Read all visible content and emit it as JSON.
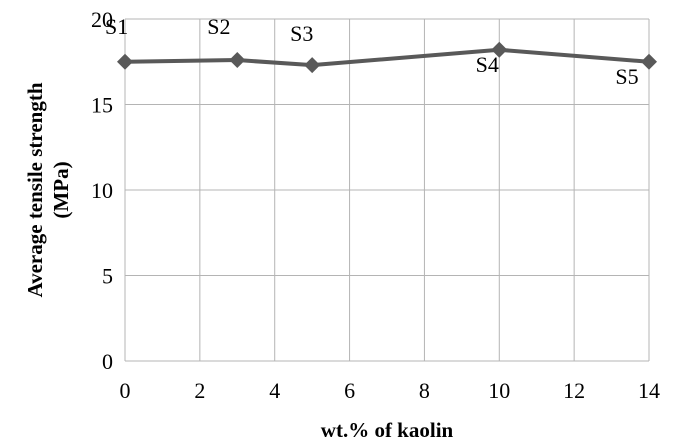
{
  "chart_data": {
    "type": "line",
    "title": "",
    "xlabel": "wt.% of kaolin",
    "ylabel_lines": [
      "Average tensile strength",
      "(MPa)"
    ],
    "xlim": [
      0,
      14
    ],
    "ylim": [
      0,
      20
    ],
    "xticks": [
      0,
      2,
      4,
      6,
      8,
      10,
      12,
      14
    ],
    "yticks": [
      0,
      5,
      10,
      15,
      20
    ],
    "grid": true,
    "legend": "none",
    "series": [
      {
        "points": [
          {
            "x": 0,
            "y": 17.5,
            "label": "S1"
          },
          {
            "x": 3,
            "y": 17.6,
            "label": "S2"
          },
          {
            "x": 5,
            "y": 17.3,
            "label": "S3"
          },
          {
            "x": 10,
            "y": 18.2,
            "label": "S4"
          },
          {
            "x": 14,
            "y": 17.5,
            "label": "S5"
          }
        ],
        "color": "#595959"
      }
    ]
  }
}
